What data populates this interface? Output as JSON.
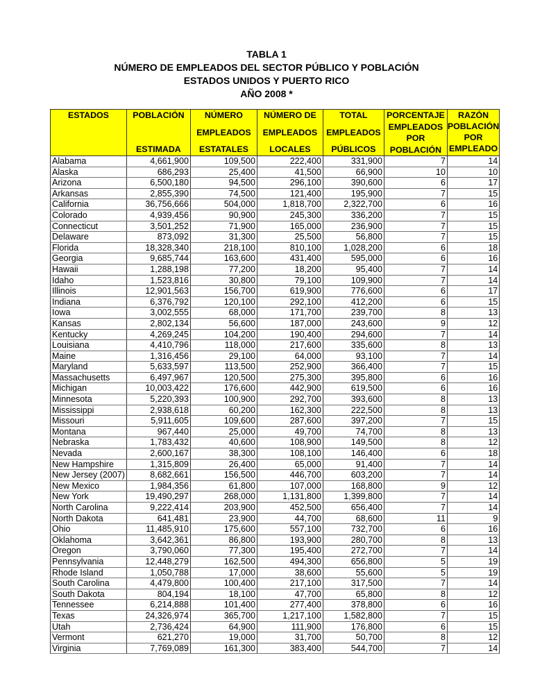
{
  "title": {
    "line1": "TABLA 1",
    "line2": "NÚMERO DE EMPLEADOS DEL SECTOR PÚBLICO Y POBLACIÓN",
    "line3": "ESTADOS UNIDOS Y PUERTO RICO",
    "line4": "AÑO 2008 *"
  },
  "header_color": "#ffff00",
  "columns": [
    {
      "lines": [
        "ESTADOS"
      ]
    },
    {
      "lines": [
        "POBLACIÓN",
        "ESTIMADA"
      ]
    },
    {
      "lines": [
        "NÚMERO",
        "EMPLEADOS",
        "ESTATALES"
      ]
    },
    {
      "lines": [
        "NÚMERO DE",
        "EMPLEADOS",
        "LOCALES"
      ]
    },
    {
      "lines": [
        "TOTAL",
        "EMPLEADOS",
        "PÚBLICOS"
      ]
    },
    {
      "lines": [
        "PORCENTAJE",
        "EMPLEADOS",
        "POR",
        "POBLACIÓN"
      ]
    },
    {
      "lines": [
        "RAZÓN",
        "POBLACIÓN",
        "POR",
        "EMPLEADO"
      ]
    }
  ],
  "rows": [
    [
      "Alabama",
      "4,661,900",
      "109,500",
      "222,400",
      "331,900",
      "7",
      "14"
    ],
    [
      "Alaska",
      "686,293",
      "25,400",
      "41,500",
      "66,900",
      "10",
      "10"
    ],
    [
      "Arizona",
      "6,500,180",
      "94,500",
      "296,100",
      "390,600",
      "6",
      "17"
    ],
    [
      "Arkansas",
      "2,855,390",
      "74,500",
      "121,400",
      "195,900",
      "7",
      "15"
    ],
    [
      "California",
      "36,756,666",
      "504,000",
      "1,818,700",
      "2,322,700",
      "6",
      "16"
    ],
    [
      "Colorado",
      "4,939,456",
      "90,900",
      "245,300",
      "336,200",
      "7",
      "15"
    ],
    [
      "Connecticut",
      "3,501,252",
      "71,900",
      "165,000",
      "236,900",
      "7",
      "15"
    ],
    [
      "Delaware",
      "873,092",
      "31,300",
      "25,500",
      "56,800",
      "7",
      "15"
    ],
    [
      "Florida",
      "18,328,340",
      "218,100",
      "810,100",
      "1,028,200",
      "6",
      "18"
    ],
    [
      "Georgia",
      "9,685,744",
      "163,600",
      "431,400",
      "595,000",
      "6",
      "16"
    ],
    [
      "Hawaii",
      "1,288,198",
      "77,200",
      "18,200",
      "95,400",
      "7",
      "14"
    ],
    [
      "Idaho",
      "1,523,816",
      "30,800",
      "79,100",
      "109,900",
      "7",
      "14"
    ],
    [
      "Illinois",
      "12,901,563",
      "156,700",
      "619,900",
      "776,600",
      "6",
      "17"
    ],
    [
      "Indiana",
      "6,376,792",
      "120,100",
      "292,100",
      "412,200",
      "6",
      "15"
    ],
    [
      "Iowa",
      "3,002,555",
      "68,000",
      "171,700",
      "239,700",
      "8",
      "13"
    ],
    [
      "Kansas",
      "2,802,134",
      "56,600",
      "187,000",
      "243,600",
      "9",
      "12"
    ],
    [
      "Kentucky",
      "4,269,245",
      "104,200",
      "190,400",
      "294,600",
      "7",
      "14"
    ],
    [
      "Louisiana",
      "4,410,796",
      "118,000",
      "217,600",
      "335,600",
      "8",
      "13"
    ],
    [
      "Maine",
      "1,316,456",
      "29,100",
      "64,000",
      "93,100",
      "7",
      "14"
    ],
    [
      "Maryland",
      "5,633,597",
      "113,500",
      "252,900",
      "366,400",
      "7",
      "15"
    ],
    [
      "Massachusetts",
      "6,497,967",
      "120,500",
      "275,300",
      "395,800",
      "6",
      "16"
    ],
    [
      "Michigan",
      "10,003,422",
      "176,600",
      "442,900",
      "619,500",
      "6",
      "16"
    ],
    [
      "Minnesota",
      "5,220,393",
      "100,900",
      "292,700",
      "393,600",
      "8",
      "13"
    ],
    [
      "Mississippi",
      "2,938,618",
      "60,200",
      "162,300",
      "222,500",
      "8",
      "13"
    ],
    [
      "Missouri",
      "5,911,605",
      "109,600",
      "287,600",
      "397,200",
      "7",
      "15"
    ],
    [
      "Montana",
      "967,440",
      "25,000",
      "49,700",
      "74,700",
      "8",
      "13"
    ],
    [
      "Nebraska",
      "1,783,432",
      "40,600",
      "108,900",
      "149,500",
      "8",
      "12"
    ],
    [
      "Nevada",
      "2,600,167",
      "38,300",
      "108,100",
      "146,400",
      "6",
      "18"
    ],
    [
      "New Hampshire",
      "1,315,809",
      "26,400",
      "65,000",
      "91,400",
      "7",
      "14"
    ],
    [
      "New Jersey (2007)",
      "8,682,661",
      "156,500",
      "446,700",
      "603,200",
      "7",
      "14"
    ],
    [
      "New Mexico",
      "1,984,356",
      "61,800",
      "107,000",
      "168,800",
      "9",
      "12"
    ],
    [
      "New York",
      "19,490,297",
      "268,000",
      "1,131,800",
      "1,399,800",
      "7",
      "14"
    ],
    [
      "North Carolina",
      "9,222,414",
      "203,900",
      "452,500",
      "656,400",
      "7",
      "14"
    ],
    [
      "North Dakota",
      "641,481",
      "23,900",
      "44,700",
      "68,600",
      "11",
      "9"
    ],
    [
      "Ohio",
      "11,485,910",
      "175,600",
      "557,100",
      "732,700",
      "6",
      "16"
    ],
    [
      "Oklahoma",
      "3,642,361",
      "86,800",
      "193,900",
      "280,700",
      "8",
      "13"
    ],
    [
      "Oregon",
      "3,790,060",
      "77,300",
      "195,400",
      "272,700",
      "7",
      "14"
    ],
    [
      "Pennsylvania",
      "12,448,279",
      "162,500",
      "494,300",
      "656,800",
      "5",
      "19"
    ],
    [
      "Rhode Island",
      "1,050,788",
      "17,000",
      "38,600",
      "55,600",
      "5",
      "19"
    ],
    [
      "South Carolina",
      "4,479,800",
      "100,400",
      "217,100",
      "317,500",
      "7",
      "14"
    ],
    [
      "South Dakota",
      "804,194",
      "18,100",
      "47,700",
      "65,800",
      "8",
      "12"
    ],
    [
      "Tennessee",
      "6,214,888",
      "101,400",
      "277,400",
      "378,800",
      "6",
      "16"
    ],
    [
      "Texas",
      "24,326,974",
      "365,700",
      "1,217,100",
      "1,582,800",
      "7",
      "15"
    ],
    [
      "Utah",
      "2,736,424",
      "64,900",
      "111,900",
      "176,800",
      "6",
      "15"
    ],
    [
      "Vermont",
      "621,270",
      "19,000",
      "31,700",
      "50,700",
      "8",
      "12"
    ],
    [
      "Virginia",
      "7,769,089",
      "161,300",
      "383,400",
      "544,700",
      "7",
      "14"
    ]
  ]
}
